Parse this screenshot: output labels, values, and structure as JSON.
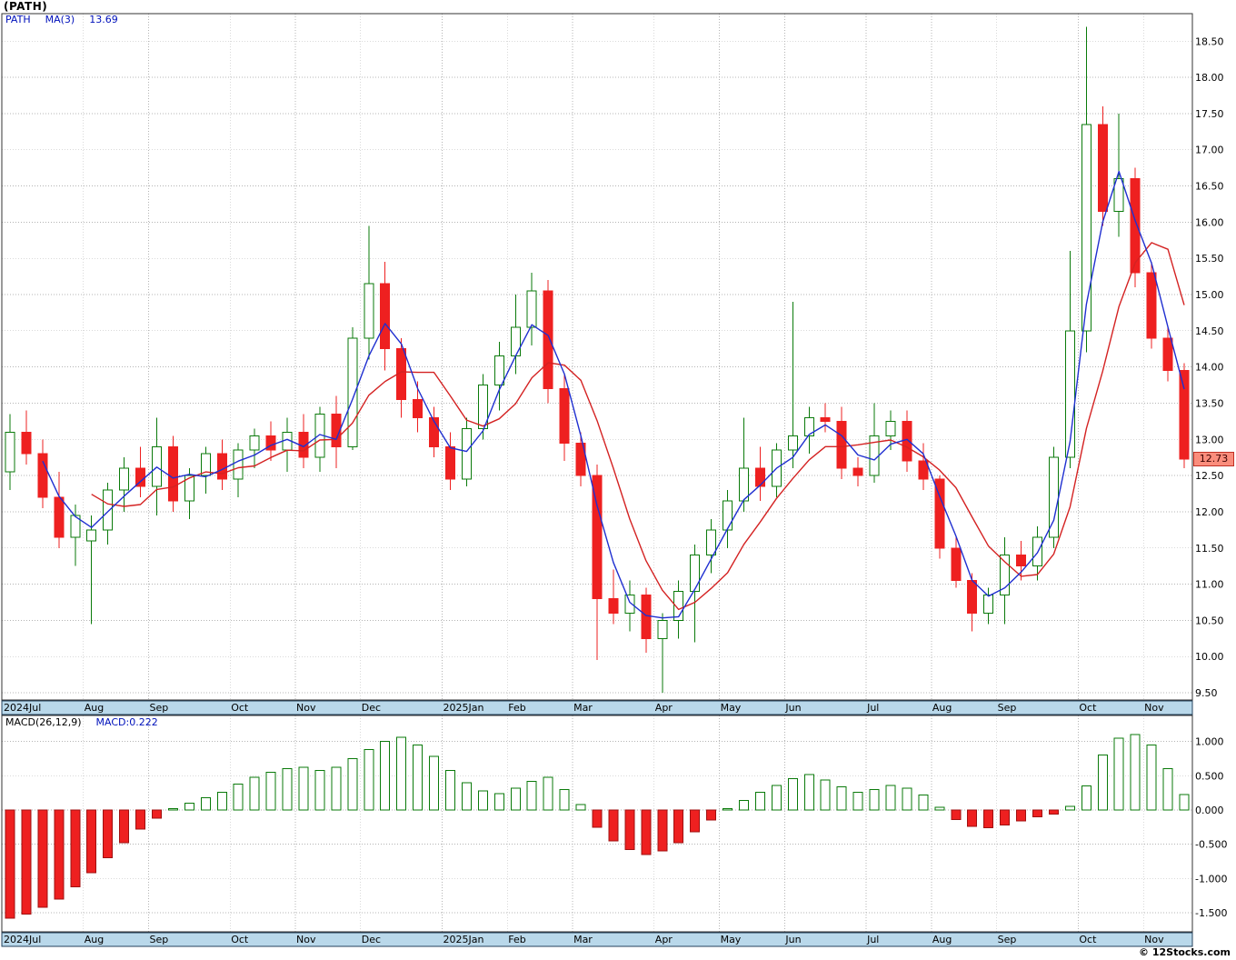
{
  "header": {
    "title": "(PATH)",
    "legend": {
      "symbol": "PATH",
      "ma_label": "MA(3)",
      "ma_value": "13.69"
    }
  },
  "macd_panel": {
    "legend": "MACD(26,12,9)",
    "value_label": "MACD:0.222"
  },
  "footer": {
    "copyright": "© 12Stocks.com"
  },
  "last_price": "12.73",
  "axes": {
    "price_ticks": [
      "18.50",
      "18.00",
      "17.50",
      "17.00",
      "16.50",
      "16.00",
      "15.50",
      "15.00",
      "14.50",
      "14.00",
      "13.50",
      "13.00",
      "12.50",
      "12.00",
      "11.50",
      "11.00",
      "10.50",
      "10.00",
      "9.50"
    ],
    "macd_ticks": [
      "1.000",
      "0.500",
      "0.000",
      "-0.500",
      "-1.000",
      "-1.500"
    ],
    "months": [
      {
        "label": "2024Jul",
        "i": 0
      },
      {
        "label": "Aug",
        "i": 5
      },
      {
        "label": "Sep",
        "i": 9
      },
      {
        "label": "Oct",
        "i": 14
      },
      {
        "label": "Nov",
        "i": 18
      },
      {
        "label": "Dec",
        "i": 22
      },
      {
        "label": "2025Jan",
        "i": 27
      },
      {
        "label": "Feb",
        "i": 31
      },
      {
        "label": "Mar",
        "i": 35
      },
      {
        "label": "Apr",
        "i": 40
      },
      {
        "label": "May",
        "i": 44
      },
      {
        "label": "Jun",
        "i": 48
      },
      {
        "label": "Jul",
        "i": 53
      },
      {
        "label": "Aug",
        "i": 57
      },
      {
        "label": "Sep",
        "i": 61
      },
      {
        "label": "Oct",
        "i": 66
      },
      {
        "label": "Nov",
        "i": 70
      }
    ]
  },
  "colors": {
    "up": "#0a7a0a",
    "down": "#ee2020",
    "macd_neg_border": "#a01010",
    "ma_fast": "#1f2fd0",
    "ma_slow": "#d42222",
    "band": "#b9d8ea",
    "band_border": "#24425c",
    "grid": "#b4b4b4",
    "border": "#333333"
  },
  "chart_data": [
    {
      "type": "candlestick",
      "symbol": "PATH",
      "timeframe": "weekly",
      "ylim": [
        9.4,
        18.88
      ],
      "last_close": 12.73,
      "overlays": [
        {
          "name": "MA(3)",
          "period": 3,
          "color_role": "ma_fast"
        },
        {
          "name": "MA(6)",
          "period": 6,
          "color_role": "ma_slow"
        }
      ],
      "columns": [
        "date",
        "open",
        "high",
        "low",
        "close"
      ],
      "candles": [
        [
          "2024 Jul 1",
          12.55,
          13.35,
          12.3,
          13.1
        ],
        [
          "Jul 8",
          13.1,
          13.4,
          12.65,
          12.8
        ],
        [
          "Jul 15",
          12.8,
          13.0,
          12.05,
          12.2
        ],
        [
          "Jul 22",
          12.2,
          12.55,
          11.5,
          11.65
        ],
        [
          "Jul 29",
          11.65,
          12.1,
          11.25,
          11.95
        ],
        [
          "Aug 5",
          11.6,
          11.95,
          10.45,
          11.75
        ],
        [
          "Aug 12",
          11.75,
          12.4,
          11.55,
          12.3
        ],
        [
          "Aug 19",
          12.3,
          12.75,
          12.0,
          12.6
        ],
        [
          "Aug 26",
          12.6,
          12.9,
          12.2,
          12.35
        ],
        [
          "Sep 2",
          12.35,
          13.3,
          11.95,
          12.9
        ],
        [
          "Sep 9",
          12.9,
          13.05,
          12.0,
          12.15
        ],
        [
          "Sep 16",
          12.15,
          12.6,
          11.9,
          12.5
        ],
        [
          "Sep 23",
          12.5,
          12.9,
          12.25,
          12.8
        ],
        [
          "Sep 30",
          12.8,
          13.0,
          12.3,
          12.45
        ],
        [
          "Oct 7",
          12.45,
          12.95,
          12.2,
          12.85
        ],
        [
          "Oct 14",
          12.85,
          13.15,
          12.6,
          13.05
        ],
        [
          "Oct 21",
          13.05,
          13.25,
          12.7,
          12.85
        ],
        [
          "Oct 28",
          12.85,
          13.3,
          12.55,
          13.1
        ],
        [
          "Nov 4",
          13.1,
          13.35,
          12.6,
          12.75
        ],
        [
          "Nov 11",
          12.75,
          13.45,
          12.55,
          13.35
        ],
        [
          "Nov 18",
          13.35,
          13.6,
          12.6,
          12.9
        ],
        [
          "Nov 25",
          12.9,
          14.55,
          12.85,
          14.4
        ],
        [
          "Dec 2",
          14.4,
          15.95,
          14.1,
          15.15
        ],
        [
          "Dec 9",
          15.15,
          15.45,
          13.95,
          14.25
        ],
        [
          "Dec 16",
          14.25,
          14.4,
          13.3,
          13.55
        ],
        [
          "Dec 23",
          13.55,
          13.8,
          13.1,
          13.3
        ],
        [
          "Dec 30",
          13.3,
          13.45,
          12.75,
          12.9
        ],
        [
          "2025 Jan 6",
          12.9,
          13.1,
          12.3,
          12.45
        ],
        [
          "Jan 13",
          12.45,
          13.3,
          12.35,
          13.15
        ],
        [
          "Jan 21",
          13.15,
          13.9,
          13.0,
          13.75
        ],
        [
          "Jan 27",
          13.75,
          14.35,
          13.4,
          14.15
        ],
        [
          "Feb 3",
          14.15,
          15.0,
          13.9,
          14.55
        ],
        [
          "Feb 10",
          14.55,
          15.3,
          14.3,
          15.05
        ],
        [
          "Feb 18",
          15.05,
          15.2,
          13.5,
          13.7
        ],
        [
          "Feb 24",
          13.7,
          13.9,
          12.7,
          12.95
        ],
        [
          "Mar 3",
          12.95,
          13.1,
          12.35,
          12.5
        ],
        [
          "Mar 10",
          12.5,
          12.65,
          9.95,
          10.8
        ],
        [
          "Mar 17",
          10.8,
          11.2,
          10.45,
          10.6
        ],
        [
          "Mar 24",
          10.6,
          11.05,
          10.35,
          10.85
        ],
        [
          "Mar 31",
          10.85,
          10.95,
          10.05,
          10.25
        ],
        [
          "Apr 7",
          10.25,
          10.6,
          9.5,
          10.5
        ],
        [
          "Apr 14",
          10.5,
          11.05,
          10.25,
          10.9
        ],
        [
          "Apr 21",
          10.9,
          11.55,
          10.2,
          11.4
        ],
        [
          "Apr 28",
          11.4,
          11.9,
          11.15,
          11.75
        ],
        [
          "May 5",
          11.75,
          12.3,
          11.5,
          12.15
        ],
        [
          "May 12",
          12.15,
          13.3,
          12.0,
          12.6
        ],
        [
          "May 19",
          12.6,
          12.9,
          12.15,
          12.35
        ],
        [
          "May 27",
          12.35,
          12.95,
          12.2,
          12.85
        ],
        [
          "Jun 2",
          12.85,
          14.9,
          12.6,
          13.05
        ],
        [
          "Jun 9",
          13.05,
          13.45,
          12.8,
          13.3
        ],
        [
          "Jun 16",
          13.3,
          13.5,
          13.1,
          13.25
        ],
        [
          "Jun 23",
          13.25,
          13.45,
          12.45,
          12.6
        ],
        [
          "Jun 30",
          12.6,
          12.75,
          12.35,
          12.5
        ],
        [
          "Jul 7",
          12.5,
          13.5,
          12.4,
          13.05
        ],
        [
          "Jul 14",
          13.05,
          13.4,
          12.85,
          13.25
        ],
        [
          "Jul 21",
          13.25,
          13.4,
          12.55,
          12.7
        ],
        [
          "Jul 28",
          12.7,
          12.95,
          12.3,
          12.45
        ],
        [
          "Aug 4",
          12.45,
          12.5,
          11.35,
          11.5
        ],
        [
          "Aug 11",
          11.5,
          11.65,
          10.95,
          11.05
        ],
        [
          "Aug 18",
          11.05,
          11.15,
          10.35,
          10.6
        ],
        [
          "Aug 25",
          10.6,
          10.95,
          10.45,
          10.85
        ],
        [
          "Sep 2",
          10.85,
          11.65,
          10.45,
          11.4
        ],
        [
          "Sep 8",
          11.4,
          11.6,
          11.05,
          11.25
        ],
        [
          "Sep 15",
          11.25,
          11.8,
          11.05,
          11.65
        ],
        [
          "Sep 22",
          11.65,
          12.9,
          11.5,
          12.75
        ],
        [
          "Sep 29",
          12.75,
          15.6,
          12.6,
          14.5
        ],
        [
          "Oct 6",
          14.5,
          18.7,
          14.2,
          17.35
        ],
        [
          "Oct 13",
          17.35,
          17.6,
          15.95,
          16.15
        ],
        [
          "Oct 20",
          16.15,
          17.5,
          15.8,
          16.6
        ],
        [
          "Oct 27",
          16.6,
          16.75,
          15.1,
          15.3
        ],
        [
          "Nov 3",
          15.3,
          15.45,
          14.25,
          14.4
        ],
        [
          "Nov 10",
          14.4,
          14.55,
          13.8,
          13.95
        ],
        [
          "Nov 17",
          13.95,
          14.05,
          12.6,
          12.73
        ]
      ]
    },
    {
      "type": "bar",
      "name": "MACD(26,12,9)",
      "ylim": [
        -1.78,
        1.38
      ],
      "last_value": 0.222,
      "values": [
        -1.58,
        -1.52,
        -1.42,
        -1.3,
        -1.12,
        -0.92,
        -0.7,
        -0.48,
        -0.28,
        -0.12,
        0.02,
        0.1,
        0.18,
        0.26,
        0.38,
        0.48,
        0.55,
        0.6,
        0.62,
        0.58,
        0.62,
        0.75,
        0.88,
        1.0,
        1.06,
        0.95,
        0.78,
        0.58,
        0.4,
        0.28,
        0.24,
        0.32,
        0.42,
        0.48,
        0.3,
        0.08,
        -0.25,
        -0.45,
        -0.58,
        -0.65,
        -0.6,
        -0.48,
        -0.32,
        -0.15,
        0.02,
        0.14,
        0.26,
        0.36,
        0.46,
        0.52,
        0.44,
        0.34,
        0.26,
        0.3,
        0.36,
        0.32,
        0.22,
        0.04,
        -0.14,
        -0.24,
        -0.26,
        -0.22,
        -0.16,
        -0.1,
        -0.06,
        0.05,
        0.35,
        0.8,
        1.05,
        1.1,
        0.95,
        0.6,
        0.222
      ]
    }
  ]
}
